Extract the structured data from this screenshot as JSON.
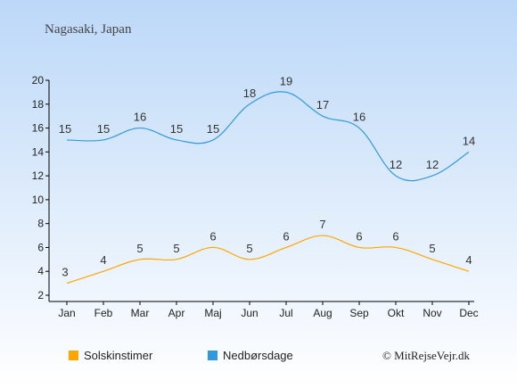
{
  "location_title": "Nagasaki, Japan",
  "copyright": "© MitRejseVejr.dk",
  "colors": {
    "sunshine": "#FFA500",
    "rain_days": "#3399DD",
    "axis": "#000000",
    "text": "#333333",
    "bg_top": "#BCD8F8",
    "bg_bottom": "#FFFFFF"
  },
  "chart_data": {
    "type": "line",
    "categories": [
      "Jan",
      "Feb",
      "Mar",
      "Apr",
      "Maj",
      "Jun",
      "Jul",
      "Aug",
      "Sep",
      "Okt",
      "Nov",
      "Dec"
    ],
    "series": [
      {
        "name": "Solskinstimer",
        "values": [
          3,
          4,
          5,
          5,
          6,
          5,
          6,
          7,
          6,
          6,
          5,
          4
        ]
      },
      {
        "name": "Nedbørsdage",
        "values": [
          15,
          15,
          16,
          15,
          15,
          18,
          19,
          17,
          16,
          12,
          12,
          14
        ]
      }
    ],
    "ylim": [
      2,
      20
    ],
    "yticks": [
      2,
      4,
      6,
      8,
      10,
      12,
      14,
      16,
      18,
      20
    ],
    "grid": false,
    "legend_position": "bottom-left"
  }
}
